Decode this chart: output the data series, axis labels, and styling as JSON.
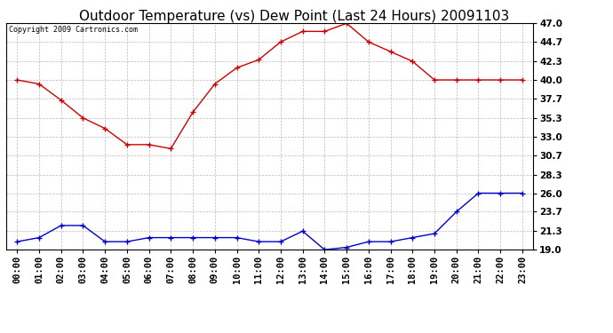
{
  "title": "Outdoor Temperature (vs) Dew Point (Last 24 Hours) 20091103",
  "copyright": "Copyright 2009 Cartronics.com",
  "hours": [
    "00:00",
    "01:00",
    "02:00",
    "03:00",
    "04:00",
    "05:00",
    "06:00",
    "07:00",
    "08:00",
    "09:00",
    "10:00",
    "11:00",
    "12:00",
    "13:00",
    "14:00",
    "15:00",
    "16:00",
    "17:00",
    "18:00",
    "19:00",
    "20:00",
    "21:00",
    "22:00",
    "23:00"
  ],
  "temp": [
    40.0,
    39.5,
    37.5,
    35.3,
    34.0,
    32.0,
    32.0,
    31.5,
    36.0,
    39.5,
    41.5,
    42.5,
    44.7,
    46.0,
    46.0,
    47.0,
    44.7,
    43.5,
    42.3,
    40.0,
    40.0,
    40.0,
    40.0,
    40.0
  ],
  "dew": [
    20.0,
    20.5,
    22.0,
    22.0,
    20.0,
    20.0,
    20.5,
    20.5,
    20.5,
    20.5,
    20.5,
    20.0,
    20.0,
    21.3,
    19.0,
    19.3,
    20.0,
    20.0,
    20.5,
    21.0,
    23.7,
    26.0,
    26.0,
    26.0
  ],
  "temp_color": "#cc0000",
  "dew_color": "#0000cc",
  "bg_color": "#ffffff",
  "plot_bg_color": "#ffffff",
  "grid_color": "#bbbbbb",
  "ytick_labels": [
    "19.0",
    "21.3",
    "23.7",
    "26.0",
    "28.3",
    "30.7",
    "33.0",
    "35.3",
    "37.7",
    "40.0",
    "42.3",
    "44.7",
    "47.0"
  ],
  "ytick_values": [
    19.0,
    21.3,
    23.7,
    26.0,
    28.3,
    30.7,
    33.0,
    35.3,
    37.7,
    40.0,
    42.3,
    44.7,
    47.0
  ],
  "ymin": 19.0,
  "ymax": 47.0,
  "title_fontsize": 11,
  "copyright_fontsize": 6,
  "tick_fontsize": 7.5
}
